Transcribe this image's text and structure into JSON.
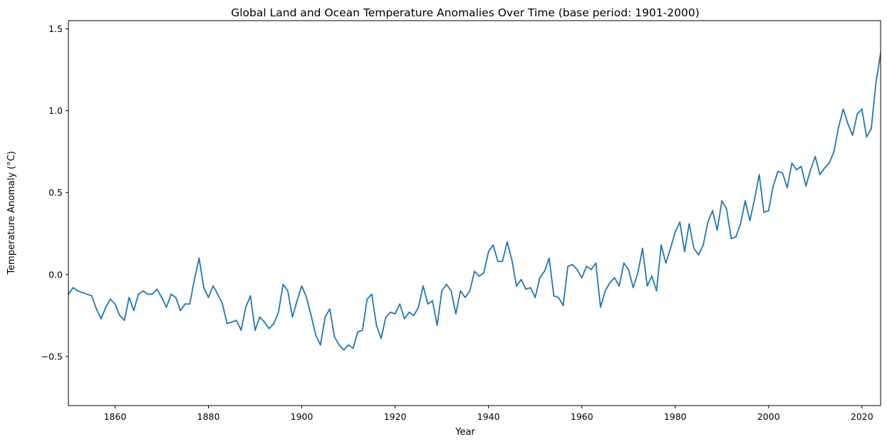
{
  "chart_data": {
    "type": "line",
    "title": "Global Land and Ocean Temperature Anomalies Over Time (base period: 1901-2000)",
    "xlabel": "Year",
    "ylabel": "Temperature Anomaly (°C)",
    "xlim": [
      1850,
      2024
    ],
    "ylim": [
      -0.8,
      1.55
    ],
    "x_ticks": [
      1860,
      1880,
      1900,
      1920,
      1940,
      1960,
      1980,
      2000,
      2020
    ],
    "y_ticks": [
      -0.5,
      0.0,
      0.5,
      1.0,
      1.5
    ],
    "y_tick_labels": [
      "−0.5",
      "0.0",
      "0.5",
      "1.0",
      "1.5"
    ],
    "grid": false,
    "legend": "none",
    "series": [
      {
        "color": "#1f77b4",
        "x": [
          1850,
          1851,
          1852,
          1853,
          1854,
          1855,
          1856,
          1857,
          1858,
          1859,
          1860,
          1861,
          1862,
          1863,
          1864,
          1865,
          1866,
          1867,
          1868,
          1869,
          1870,
          1871,
          1872,
          1873,
          1874,
          1875,
          1876,
          1877,
          1878,
          1879,
          1880,
          1881,
          1882,
          1883,
          1884,
          1885,
          1886,
          1887,
          1888,
          1889,
          1890,
          1891,
          1892,
          1893,
          1894,
          1895,
          1896,
          1897,
          1898,
          1899,
          1900,
          1901,
          1902,
          1903,
          1904,
          1905,
          1906,
          1907,
          1908,
          1909,
          1910,
          1911,
          1912,
          1913,
          1914,
          1915,
          1916,
          1917,
          1918,
          1919,
          1920,
          1921,
          1922,
          1923,
          1924,
          1925,
          1926,
          1927,
          1928,
          1929,
          1930,
          1931,
          1932,
          1933,
          1934,
          1935,
          1936,
          1937,
          1938,
          1939,
          1940,
          1941,
          1942,
          1943,
          1944,
          1945,
          1946,
          1947,
          1948,
          1949,
          1950,
          1951,
          1952,
          1953,
          1954,
          1955,
          1956,
          1957,
          1958,
          1959,
          1960,
          1961,
          1962,
          1963,
          1964,
          1965,
          1966,
          1967,
          1968,
          1969,
          1970,
          1971,
          1972,
          1973,
          1974,
          1975,
          1976,
          1977,
          1978,
          1979,
          1980,
          1981,
          1982,
          1983,
          1984,
          1985,
          1986,
          1987,
          1988,
          1989,
          1990,
          1991,
          1992,
          1993,
          1994,
          1995,
          1996,
          1997,
          1998,
          1999,
          2000,
          2001,
          2002,
          2003,
          2004,
          2005,
          2006,
          2007,
          2008,
          2009,
          2010,
          2011,
          2012,
          2013,
          2014,
          2015,
          2016,
          2017,
          2018,
          2019,
          2020,
          2021,
          2022,
          2023,
          2024
        ],
        "values": [
          -0.12,
          -0.08,
          -0.1,
          -0.11,
          -0.12,
          -0.13,
          -0.21,
          -0.27,
          -0.2,
          -0.15,
          -0.18,
          -0.25,
          -0.28,
          -0.14,
          -0.22,
          -0.12,
          -0.1,
          -0.12,
          -0.12,
          -0.09,
          -0.14,
          -0.2,
          -0.12,
          -0.14,
          -0.22,
          -0.18,
          -0.18,
          -0.03,
          0.1,
          -0.08,
          -0.14,
          -0.07,
          -0.12,
          -0.18,
          -0.3,
          -0.29,
          -0.28,
          -0.34,
          -0.2,
          -0.13,
          -0.34,
          -0.26,
          -0.29,
          -0.33,
          -0.3,
          -0.23,
          -0.06,
          -0.1,
          -0.26,
          -0.16,
          -0.07,
          -0.14,
          -0.25,
          -0.37,
          -0.43,
          -0.26,
          -0.21,
          -0.38,
          -0.43,
          -0.46,
          -0.43,
          -0.45,
          -0.35,
          -0.34,
          -0.15,
          -0.12,
          -0.31,
          -0.39,
          -0.26,
          -0.23,
          -0.24,
          -0.18,
          -0.27,
          -0.23,
          -0.25,
          -0.2,
          -0.07,
          -0.18,
          -0.16,
          -0.31,
          -0.1,
          -0.06,
          -0.1,
          -0.24,
          -0.1,
          -0.14,
          -0.1,
          0.02,
          -0.01,
          0.01,
          0.14,
          0.18,
          0.08,
          0.08,
          0.2,
          0.09,
          -0.07,
          -0.03,
          -0.09,
          -0.08,
          -0.14,
          -0.02,
          0.02,
          0.1,
          -0.13,
          -0.14,
          -0.19,
          0.05,
          0.06,
          0.03,
          -0.02,
          0.05,
          0.03,
          0.07,
          -0.2,
          -0.1,
          -0.05,
          -0.02,
          -0.07,
          0.07,
          0.03,
          -0.08,
          0.01,
          0.16,
          -0.07,
          -0.01,
          -0.1,
          0.18,
          0.07,
          0.16,
          0.26,
          0.32,
          0.14,
          0.31,
          0.16,
          0.12,
          0.18,
          0.32,
          0.39,
          0.27,
          0.45,
          0.4,
          0.22,
          0.23,
          0.31,
          0.45,
          0.33,
          0.46,
          0.61,
          0.38,
          0.39,
          0.54,
          0.63,
          0.62,
          0.53,
          0.68,
          0.64,
          0.66,
          0.54,
          0.64,
          0.72,
          0.61,
          0.65,
          0.68,
          0.75,
          0.9,
          1.01,
          0.92,
          0.85,
          0.98,
          1.01,
          0.84,
          0.89,
          1.17,
          1.35
        ]
      }
    ]
  }
}
